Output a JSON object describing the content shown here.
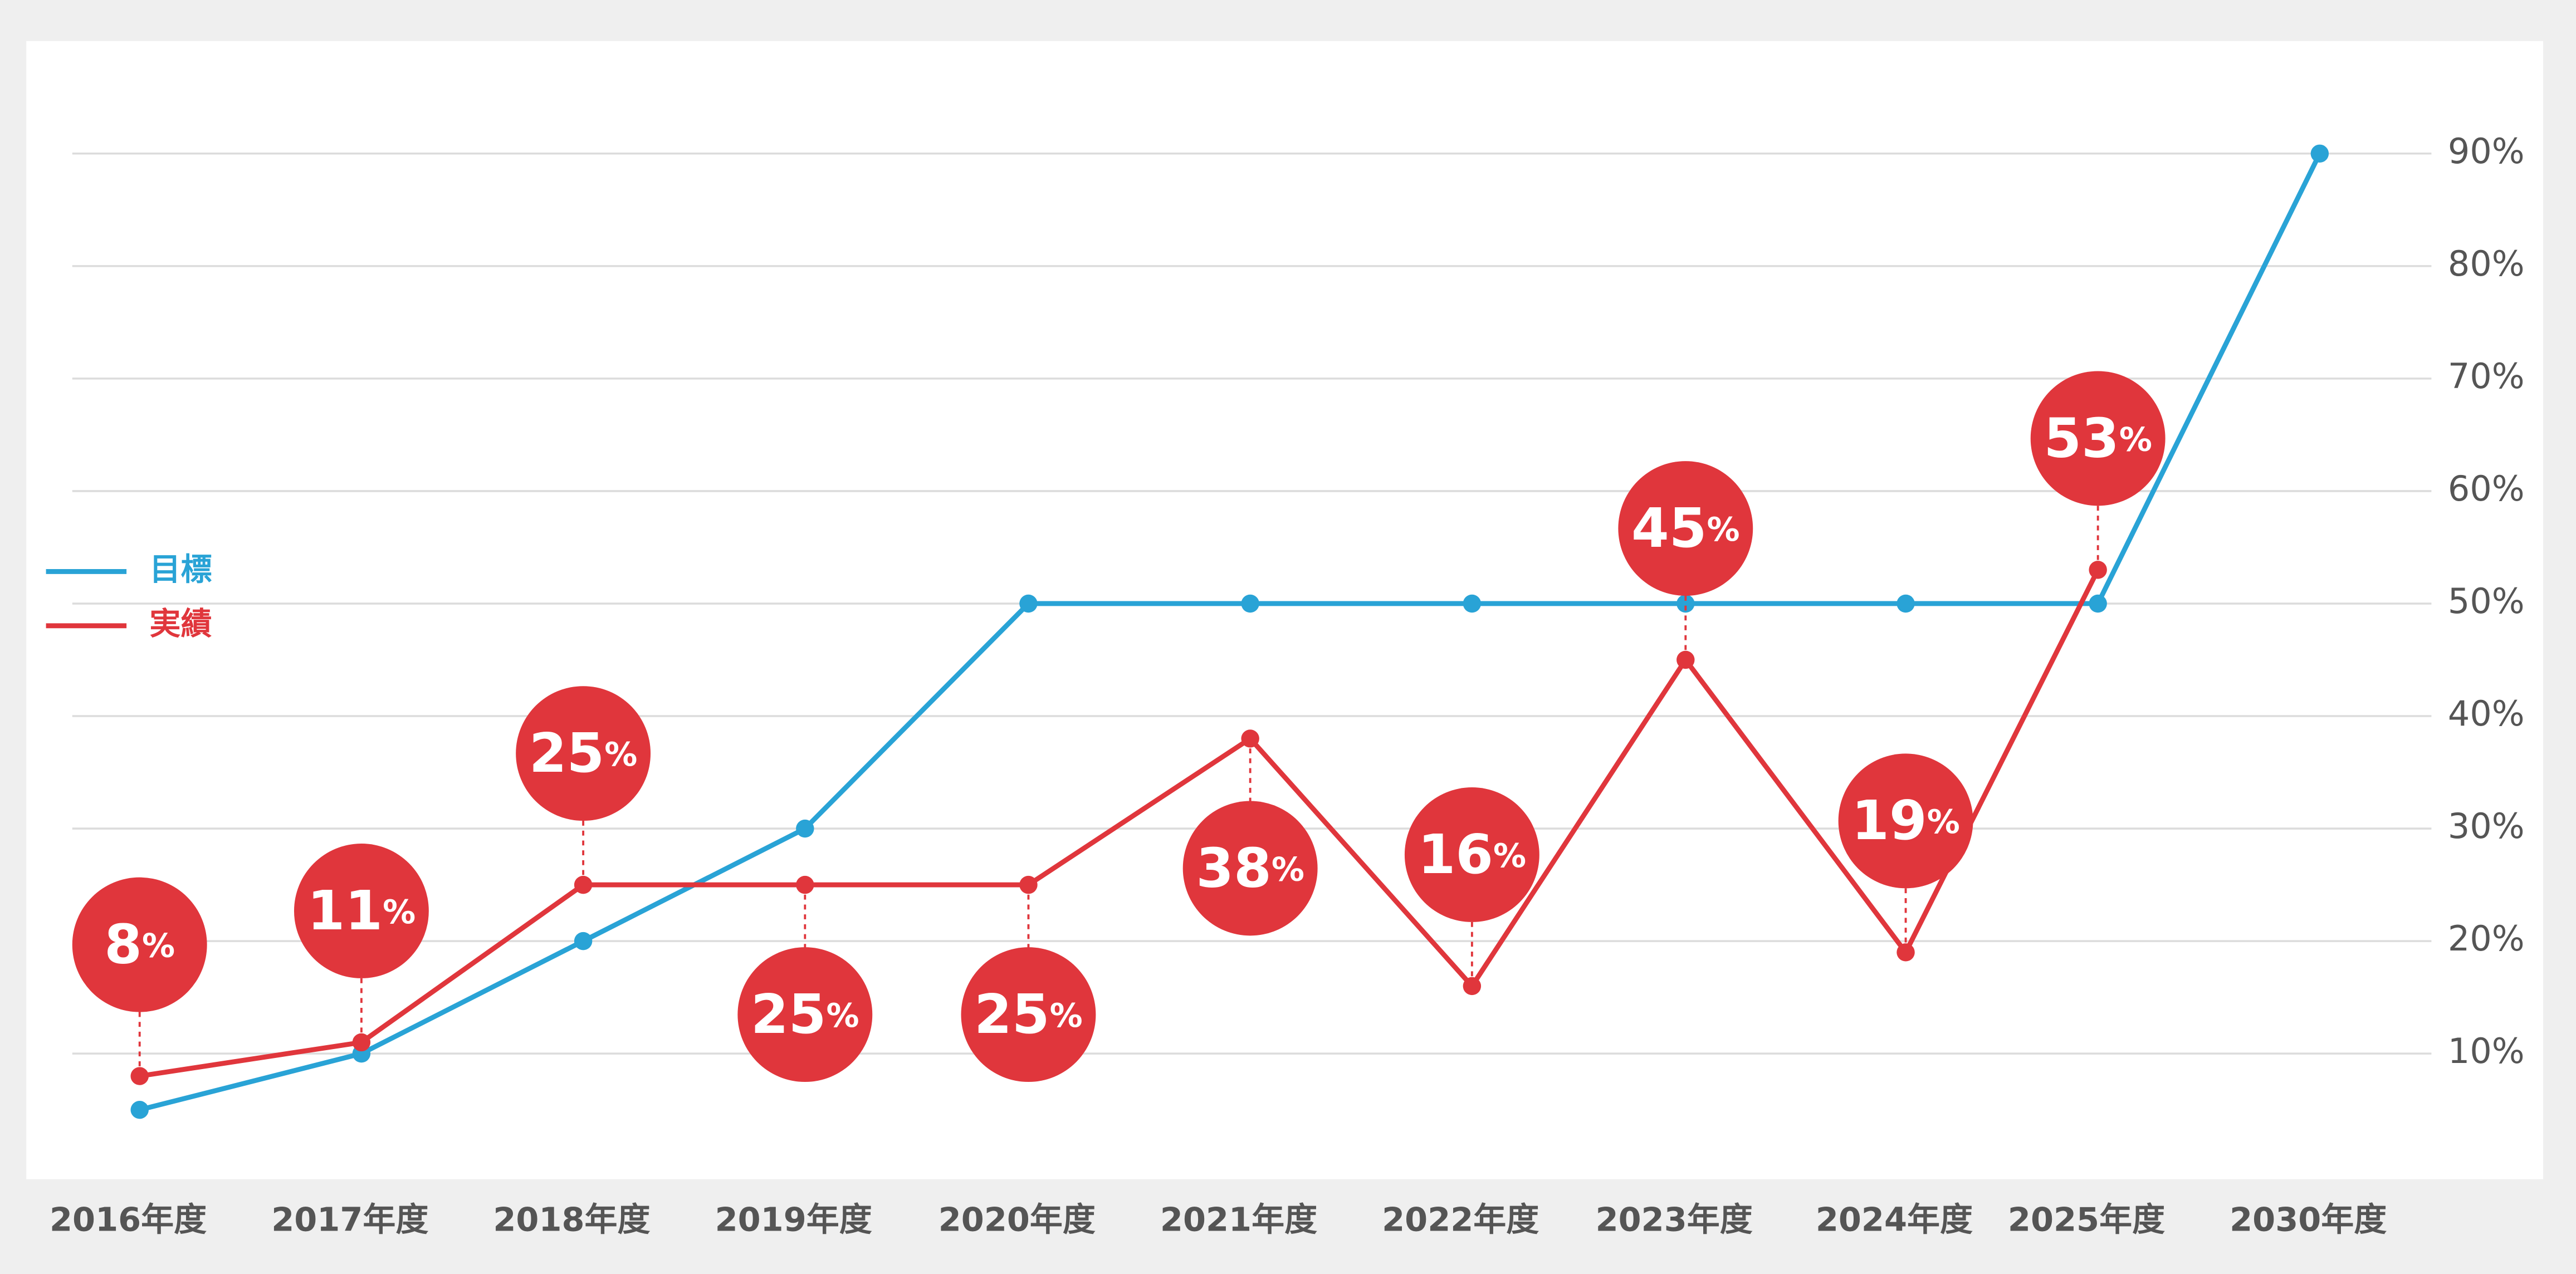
{
  "chart_data": {
    "type": "line",
    "categories": [
      "2016年度",
      "2017年度",
      "2018年度",
      "2019年度",
      "2020年度",
      "2021年度",
      "2022年度",
      "2023年度",
      "2024年度",
      "2025年度",
      "2030年度"
    ],
    "series": [
      {
        "name": "目標",
        "color": "#29a3d6",
        "values": [
          5,
          10,
          20,
          30,
          50,
          50,
          50,
          50,
          50,
          50,
          90
        ]
      },
      {
        "name": "実績",
        "color": "#e0363c",
        "values": [
          8,
          11,
          25,
          25,
          25,
          38,
          16,
          45,
          19,
          53,
          null
        ],
        "value_labels": [
          "8%",
          "11%",
          "25%",
          "25%",
          "25%",
          "38%",
          "16%",
          "45%",
          "19%",
          "53%",
          null
        ]
      }
    ],
    "ylim": [
      0,
      100
    ],
    "yticks": [
      {
        "value": 10,
        "label": "10%"
      },
      {
        "value": 20,
        "label": "20%"
      },
      {
        "value": 30,
        "label": "30%"
      },
      {
        "value": 40,
        "label": "40%"
      },
      {
        "value": 50,
        "label": "50%"
      },
      {
        "value": 60,
        "label": "60%"
      },
      {
        "value": 70,
        "label": "70%"
      },
      {
        "value": 80,
        "label": "80%"
      },
      {
        "value": 90,
        "label": "90%"
      }
    ],
    "grid": true
  }
}
